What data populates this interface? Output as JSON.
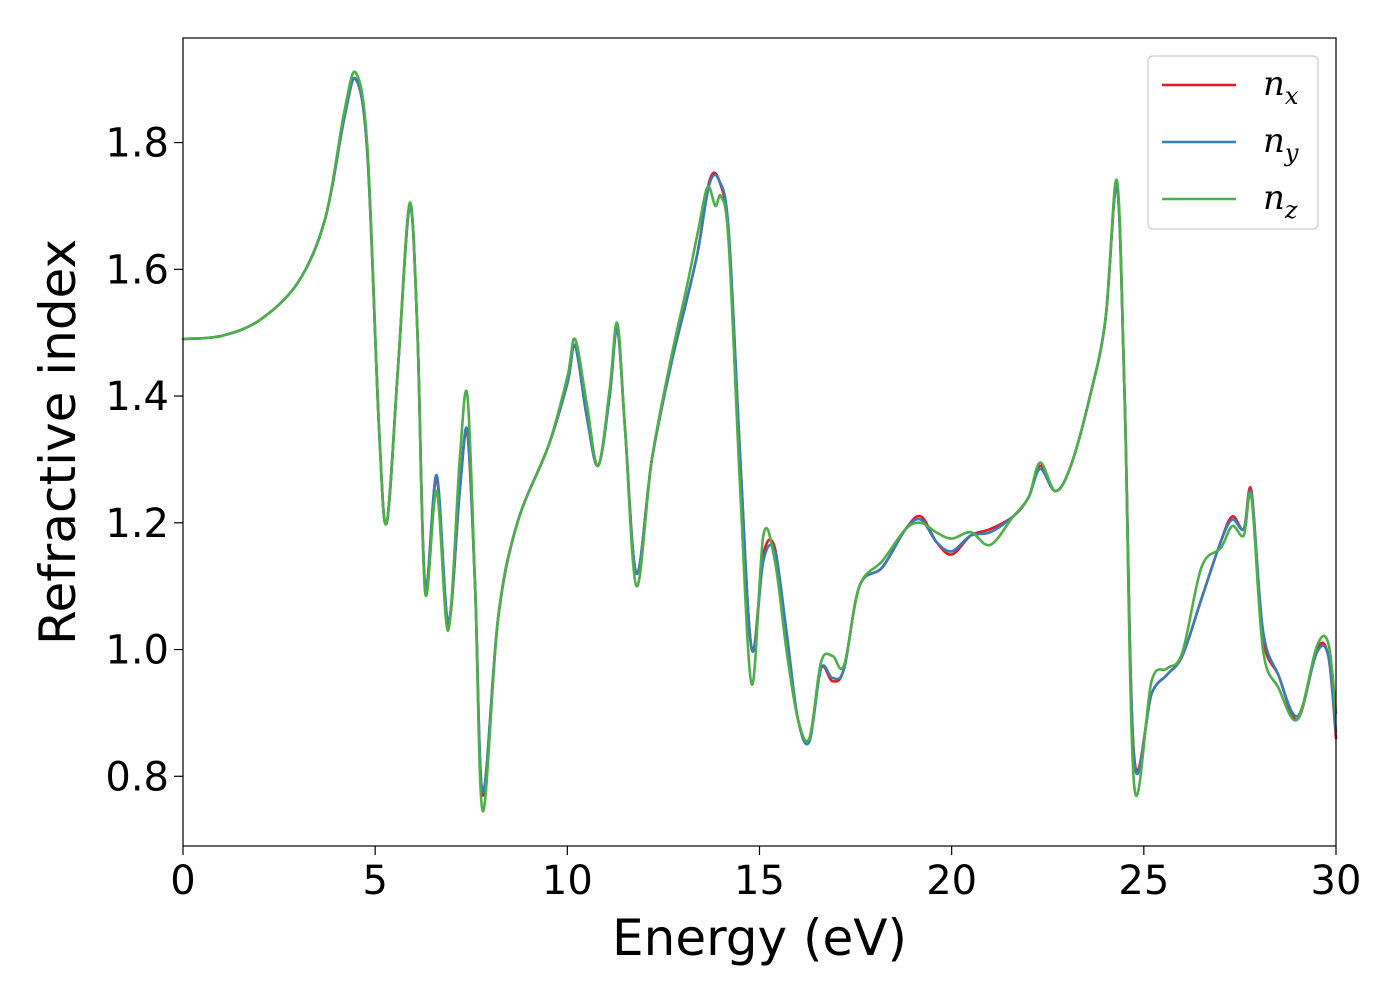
{
  "chart_data": {
    "type": "line",
    "xlabel": "Energy (eV)",
    "ylabel": "Refractive index",
    "xlim": [
      0,
      30
    ],
    "ylim": [
      0.69,
      1.965
    ],
    "xticks": [
      "0",
      "5",
      "10",
      "15",
      "20",
      "25",
      "30"
    ],
    "yticks": [
      "0.8",
      "1.0",
      "1.2",
      "1.4",
      "1.6",
      "1.8"
    ],
    "grid": false,
    "legend_position": "top-right",
    "series": [
      {
        "name": "n",
        "subscript": "x",
        "color": "#e41a1c",
        "points": [
          [
            0,
            1.49
          ],
          [
            1,
            1.495
          ],
          [
            2,
            1.52
          ],
          [
            3,
            1.58
          ],
          [
            3.7,
            1.68
          ],
          [
            4.2,
            1.84
          ],
          [
            4.5,
            1.9
          ],
          [
            4.8,
            1.78
          ],
          [
            5.1,
            1.35
          ],
          [
            5.3,
            1.2
          ],
          [
            5.6,
            1.45
          ],
          [
            5.9,
            1.7
          ],
          [
            6.1,
            1.5
          ],
          [
            6.3,
            1.1
          ],
          [
            6.6,
            1.27
          ],
          [
            6.9,
            1.04
          ],
          [
            7.2,
            1.25
          ],
          [
            7.4,
            1.34
          ],
          [
            7.6,
            1.1
          ],
          [
            7.8,
            0.77
          ],
          [
            8.2,
            1.05
          ],
          [
            8.7,
            1.2
          ],
          [
            9.5,
            1.32
          ],
          [
            10,
            1.42
          ],
          [
            10.2,
            1.48
          ],
          [
            10.5,
            1.37
          ],
          [
            10.8,
            1.29
          ],
          [
            11.1,
            1.4
          ],
          [
            11.3,
            1.51
          ],
          [
            11.5,
            1.35
          ],
          [
            11.8,
            1.12
          ],
          [
            12.2,
            1.3
          ],
          [
            12.7,
            1.45
          ],
          [
            13.1,
            1.55
          ],
          [
            13.4,
            1.63
          ],
          [
            13.7,
            1.74
          ],
          [
            13.95,
            1.74
          ],
          [
            14.2,
            1.65
          ],
          [
            14.5,
            1.3
          ],
          [
            14.8,
            1.0
          ],
          [
            15.1,
            1.15
          ],
          [
            15.4,
            1.16
          ],
          [
            15.7,
            1.02
          ],
          [
            16,
            0.89
          ],
          [
            16.3,
            0.86
          ],
          [
            16.6,
            0.97
          ],
          [
            16.9,
            0.95
          ],
          [
            17.2,
            0.97
          ],
          [
            17.6,
            1.1
          ],
          [
            18.2,
            1.13
          ],
          [
            18.8,
            1.19
          ],
          [
            19.2,
            1.21
          ],
          [
            19.6,
            1.17
          ],
          [
            20,
            1.15
          ],
          [
            20.5,
            1.18
          ],
          [
            21,
            1.19
          ],
          [
            21.6,
            1.21
          ],
          [
            22.0,
            1.24
          ],
          [
            22.3,
            1.29
          ],
          [
            22.7,
            1.25
          ],
          [
            23.1,
            1.29
          ],
          [
            23.6,
            1.4
          ],
          [
            24.0,
            1.52
          ],
          [
            24.3,
            1.73
          ],
          [
            24.5,
            1.4
          ],
          [
            24.75,
            0.83
          ],
          [
            25.2,
            0.93
          ],
          [
            25.6,
            0.96
          ],
          [
            26,
            0.99
          ],
          [
            26.5,
            1.08
          ],
          [
            27,
            1.17
          ],
          [
            27.3,
            1.21
          ],
          [
            27.6,
            1.19
          ],
          [
            27.8,
            1.25
          ],
          [
            28.1,
            1.02
          ],
          [
            28.5,
            0.96
          ],
          [
            29,
            0.89
          ],
          [
            29.5,
            1.0
          ],
          [
            29.8,
            0.99
          ],
          [
            30,
            0.86
          ]
        ]
      },
      {
        "name": "n",
        "subscript": "y",
        "color": "#377eb8",
        "points": [
          [
            0,
            1.49
          ],
          [
            1,
            1.495
          ],
          [
            2,
            1.52
          ],
          [
            3,
            1.58
          ],
          [
            3.7,
            1.68
          ],
          [
            4.2,
            1.84
          ],
          [
            4.5,
            1.9
          ],
          [
            4.8,
            1.78
          ],
          [
            5.1,
            1.35
          ],
          [
            5.3,
            1.2
          ],
          [
            5.6,
            1.45
          ],
          [
            5.9,
            1.7
          ],
          [
            6.1,
            1.5
          ],
          [
            6.3,
            1.1
          ],
          [
            6.6,
            1.275
          ],
          [
            6.9,
            1.045
          ],
          [
            7.2,
            1.25
          ],
          [
            7.4,
            1.345
          ],
          [
            7.6,
            1.1
          ],
          [
            7.8,
            0.775
          ],
          [
            8.2,
            1.05
          ],
          [
            8.7,
            1.2
          ],
          [
            9.5,
            1.32
          ],
          [
            10,
            1.42
          ],
          [
            10.2,
            1.48
          ],
          [
            10.5,
            1.37
          ],
          [
            10.8,
            1.29
          ],
          [
            11.1,
            1.4
          ],
          [
            11.3,
            1.505
          ],
          [
            11.5,
            1.35
          ],
          [
            11.8,
            1.12
          ],
          [
            12.2,
            1.3
          ],
          [
            12.7,
            1.45
          ],
          [
            13.1,
            1.55
          ],
          [
            13.4,
            1.63
          ],
          [
            13.7,
            1.735
          ],
          [
            13.95,
            1.74
          ],
          [
            14.2,
            1.66
          ],
          [
            14.5,
            1.3
          ],
          [
            14.8,
            1.0
          ],
          [
            15.1,
            1.14
          ],
          [
            15.4,
            1.155
          ],
          [
            15.7,
            1.03
          ],
          [
            16,
            0.89
          ],
          [
            16.3,
            0.855
          ],
          [
            16.6,
            0.97
          ],
          [
            16.9,
            0.955
          ],
          [
            17.2,
            0.97
          ],
          [
            17.6,
            1.1
          ],
          [
            18.2,
            1.13
          ],
          [
            18.8,
            1.19
          ],
          [
            19.2,
            1.205
          ],
          [
            19.6,
            1.17
          ],
          [
            20,
            1.155
          ],
          [
            20.5,
            1.18
          ],
          [
            21,
            1.185
          ],
          [
            21.6,
            1.21
          ],
          [
            22.0,
            1.24
          ],
          [
            22.3,
            1.285
          ],
          [
            22.7,
            1.25
          ],
          [
            23.1,
            1.29
          ],
          [
            23.6,
            1.4
          ],
          [
            24.0,
            1.52
          ],
          [
            24.3,
            1.73
          ],
          [
            24.5,
            1.4
          ],
          [
            24.75,
            0.825
          ],
          [
            25.2,
            0.93
          ],
          [
            25.6,
            0.96
          ],
          [
            26,
            0.99
          ],
          [
            26.5,
            1.08
          ],
          [
            27,
            1.17
          ],
          [
            27.3,
            1.205
          ],
          [
            27.6,
            1.19
          ],
          [
            27.8,
            1.245
          ],
          [
            28.1,
            1.03
          ],
          [
            28.5,
            0.96
          ],
          [
            29,
            0.895
          ],
          [
            29.5,
            0.995
          ],
          [
            29.8,
            0.99
          ],
          [
            30,
            0.87
          ]
        ]
      },
      {
        "name": "n",
        "subscript": "z",
        "color": "#4daf4a",
        "points": [
          [
            0,
            1.49
          ],
          [
            1,
            1.495
          ],
          [
            2,
            1.52
          ],
          [
            3,
            1.58
          ],
          [
            3.7,
            1.68
          ],
          [
            4.2,
            1.85
          ],
          [
            4.5,
            1.91
          ],
          [
            4.8,
            1.79
          ],
          [
            5.1,
            1.35
          ],
          [
            5.3,
            1.2
          ],
          [
            5.6,
            1.45
          ],
          [
            5.9,
            1.705
          ],
          [
            6.1,
            1.5
          ],
          [
            6.3,
            1.09
          ],
          [
            6.6,
            1.25
          ],
          [
            6.9,
            1.03
          ],
          [
            7.2,
            1.3
          ],
          [
            7.4,
            1.4
          ],
          [
            7.6,
            1.1
          ],
          [
            7.8,
            0.745
          ],
          [
            8.2,
            1.05
          ],
          [
            8.7,
            1.2
          ],
          [
            9.5,
            1.32
          ],
          [
            10,
            1.43
          ],
          [
            10.2,
            1.49
          ],
          [
            10.5,
            1.39
          ],
          [
            10.8,
            1.29
          ],
          [
            11.1,
            1.41
          ],
          [
            11.3,
            1.515
          ],
          [
            11.5,
            1.35
          ],
          [
            11.8,
            1.1
          ],
          [
            12.2,
            1.3
          ],
          [
            12.7,
            1.46
          ],
          [
            13.1,
            1.57
          ],
          [
            13.4,
            1.66
          ],
          [
            13.65,
            1.73
          ],
          [
            13.85,
            1.7
          ],
          [
            14.0,
            1.715
          ],
          [
            14.2,
            1.64
          ],
          [
            14.5,
            1.25
          ],
          [
            14.8,
            0.945
          ],
          [
            15.1,
            1.18
          ],
          [
            15.4,
            1.14
          ],
          [
            15.7,
            1.0
          ],
          [
            16,
            0.89
          ],
          [
            16.3,
            0.86
          ],
          [
            16.6,
            0.98
          ],
          [
            16.9,
            0.99
          ],
          [
            17.2,
            0.975
          ],
          [
            17.6,
            1.1
          ],
          [
            18.2,
            1.14
          ],
          [
            18.8,
            1.19
          ],
          [
            19.2,
            1.2
          ],
          [
            19.6,
            1.185
          ],
          [
            20,
            1.175
          ],
          [
            20.5,
            1.185
          ],
          [
            21,
            1.165
          ],
          [
            21.6,
            1.21
          ],
          [
            22.0,
            1.24
          ],
          [
            22.3,
            1.295
          ],
          [
            22.7,
            1.25
          ],
          [
            23.1,
            1.29
          ],
          [
            23.6,
            1.4
          ],
          [
            24.0,
            1.52
          ],
          [
            24.3,
            1.74
          ],
          [
            24.5,
            1.4
          ],
          [
            24.75,
            0.785
          ],
          [
            25.2,
            0.95
          ],
          [
            25.6,
            0.97
          ],
          [
            26,
            0.995
          ],
          [
            26.5,
            1.13
          ],
          [
            27,
            1.16
          ],
          [
            27.3,
            1.195
          ],
          [
            27.6,
            1.18
          ],
          [
            27.8,
            1.24
          ],
          [
            28.1,
            1.0
          ],
          [
            28.5,
            0.94
          ],
          [
            29,
            0.89
          ],
          [
            29.5,
            1.005
          ],
          [
            29.8,
            1.01
          ],
          [
            30,
            0.9
          ]
        ]
      }
    ]
  }
}
